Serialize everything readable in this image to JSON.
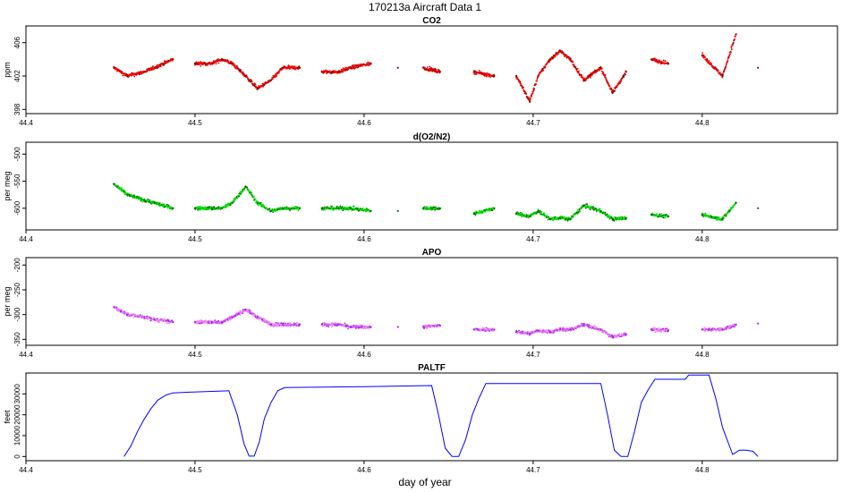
{
  "figure": {
    "title": "170213a   Aircraft Data 1",
    "xlabel": "day of year"
  },
  "chart_data": [
    {
      "type": "scatter",
      "title": "CO2",
      "ylabel": "ppm",
      "xlim": [
        44.4,
        44.88
      ],
      "ylim": [
        397.5,
        408
      ],
      "xticks": [
        44.4,
        44.5,
        44.6,
        44.7,
        44.8
      ],
      "yticks": [
        398,
        402,
        406
      ],
      "colors": [
        "#ff0000",
        "#8b0000"
      ],
      "series": [
        {
          "name": "CO2",
          "x": [
            44.452,
            44.46,
            44.47,
            44.476,
            44.487,
            44.5,
            44.51,
            44.516,
            44.522,
            44.53,
            44.537,
            44.545,
            44.552,
            44.562,
            44.575,
            44.585,
            44.592,
            44.604,
            44.62,
            44.635,
            44.645,
            44.665,
            44.677,
            44.69,
            44.698,
            44.703,
            44.71,
            44.716,
            44.722,
            44.73,
            44.74,
            44.747,
            44.755,
            44.77,
            44.78,
            44.8,
            44.812,
            44.82,
            44.833
          ],
          "y": [
            403,
            402,
            402.5,
            403,
            404,
            403.5,
            403.5,
            404,
            403.5,
            402,
            400.5,
            401.5,
            403,
            403,
            402.5,
            402.5,
            403,
            403.5,
            403,
            403,
            402.5,
            402.5,
            402,
            402,
            399,
            402,
            404,
            405,
            404,
            401.5,
            403,
            400,
            402.5,
            404,
            403.5,
            404.5,
            402,
            407,
            403
          ]
        }
      ]
    },
    {
      "type": "scatter",
      "title": "d(O2/N2)",
      "ylabel": "per meg",
      "xlim": [
        44.4,
        44.88
      ],
      "ylim": [
        -640,
        -478
      ],
      "xticks": [
        44.4,
        44.5,
        44.6,
        44.7,
        44.8
      ],
      "yticks": [
        -500,
        -550,
        -600
      ],
      "colors": [
        "#00e400",
        "#006400"
      ],
      "series": [
        {
          "name": "d(O2/N2)",
          "x": [
            44.452,
            44.46,
            44.47,
            44.476,
            44.487,
            44.5,
            44.51,
            44.516,
            44.522,
            44.53,
            44.537,
            44.545,
            44.552,
            44.562,
            44.575,
            44.585,
            44.592,
            44.604,
            44.62,
            44.635,
            44.645,
            44.665,
            44.677,
            44.69,
            44.698,
            44.703,
            44.71,
            44.716,
            44.722,
            44.73,
            44.74,
            44.747,
            44.755,
            44.77,
            44.78,
            44.8,
            44.812,
            44.82,
            44.833
          ],
          "y": [
            -555,
            -575,
            -585,
            -590,
            -600,
            -600,
            -600,
            -600,
            -590,
            -560,
            -590,
            -605,
            -600,
            -600,
            -600,
            -600,
            -600,
            -605,
            -605,
            -600,
            -600,
            -610,
            -600,
            -610,
            -615,
            -605,
            -620,
            -618,
            -620,
            -595,
            -605,
            -620,
            -618,
            -612,
            -615,
            -612,
            -620,
            -590,
            -600
          ]
        }
      ]
    },
    {
      "type": "scatter",
      "title": "APO",
      "ylabel": "per meg",
      "xlim": [
        44.4,
        44.88
      ],
      "ylim": [
        -362,
        -185
      ],
      "xticks": [
        44.4,
        44.5,
        44.6,
        44.7,
        44.8
      ],
      "yticks": [
        -200,
        -250,
        -300,
        -350
      ],
      "colors": [
        "#ee82ee",
        "#a020f0"
      ],
      "series": [
        {
          "name": "APO",
          "x": [
            44.452,
            44.46,
            44.47,
            44.476,
            44.487,
            44.5,
            44.51,
            44.516,
            44.522,
            44.53,
            44.537,
            44.545,
            44.552,
            44.562,
            44.575,
            44.585,
            44.592,
            44.604,
            44.62,
            44.635,
            44.645,
            44.665,
            44.677,
            44.69,
            44.698,
            44.703,
            44.71,
            44.716,
            44.722,
            44.73,
            44.74,
            44.747,
            44.755,
            44.77,
            44.78,
            44.8,
            44.812,
            44.82,
            44.833
          ],
          "y": [
            -285,
            -300,
            -305,
            -310,
            -315,
            -315,
            -315,
            -315,
            -305,
            -290,
            -305,
            -320,
            -320,
            -320,
            -320,
            -320,
            -325,
            -325,
            -325,
            -325,
            -322,
            -330,
            -330,
            -335,
            -338,
            -333,
            -335,
            -330,
            -330,
            -320,
            -330,
            -345,
            -340,
            -330,
            -332,
            -330,
            -330,
            -320,
            -318
          ]
        }
      ]
    },
    {
      "type": "line",
      "title": "PALTF",
      "ylabel": "feet",
      "xlim": [
        44.4,
        44.88
      ],
      "ylim": [
        -2000,
        40000
      ],
      "xticks": [
        44.4,
        44.5,
        44.6,
        44.7,
        44.8
      ],
      "yticks": [
        0,
        10000,
        20000,
        30000
      ],
      "colors": [
        "#0000ff"
      ],
      "series": [
        {
          "name": "PALTF",
          "x": [
            44.458,
            44.462,
            44.466,
            44.47,
            44.474,
            44.478,
            44.483,
            44.487,
            44.495,
            44.52,
            44.525,
            44.529,
            44.532,
            44.535,
            44.538,
            44.541,
            44.545,
            44.549,
            44.553,
            44.6,
            44.64,
            44.644,
            44.648,
            44.652,
            44.656,
            44.66,
            44.664,
            44.668,
            44.672,
            44.74,
            44.744,
            44.748,
            44.752,
            44.756,
            44.76,
            44.764,
            44.768,
            44.772,
            44.79,
            44.792,
            44.804,
            44.808,
            44.812,
            44.818,
            44.822,
            44.826,
            44.83,
            44.833
          ],
          "y": [
            0,
            5000,
            12000,
            18000,
            23000,
            27000,
            29500,
            30500,
            30800,
            31500,
            20000,
            6000,
            200,
            200,
            7000,
            18000,
            26000,
            31500,
            33000,
            33500,
            34000,
            20000,
            4000,
            0,
            0,
            8000,
            20000,
            28000,
            35000,
            35000,
            20000,
            3000,
            0,
            0,
            12000,
            26000,
            32000,
            37000,
            37000,
            39000,
            39000,
            28000,
            14000,
            1000,
            3000,
            3000,
            2500,
            0
          ]
        }
      ]
    }
  ]
}
